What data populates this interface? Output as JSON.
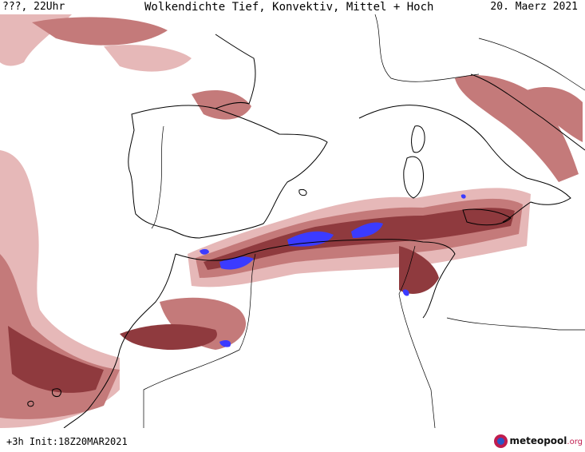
{
  "header": {
    "left": "???, 22Uhr",
    "center": "Wolkendichte  Tief, Konvektiv, Mittel + Hoch",
    "right": "20. Maerz 2021"
  },
  "footer": {
    "left": "+3h  Init:18Z20MAR2021"
  },
  "logo": {
    "name": "meteopool",
    "tld": ".org"
  },
  "colors": {
    "cloud_light": "#e6b8b8",
    "cloud_medium": "#c47a7a",
    "cloud_dark": "#8f3a3e",
    "convective": "#3b3bff",
    "coastline": "#000000",
    "background": "#ffffff"
  },
  "map": {
    "region": "Western Mediterranean, Iberian Peninsula, North Africa",
    "layers": [
      "cloud-density-low",
      "cloud-density-convective",
      "cloud-density-mid-high"
    ]
  }
}
